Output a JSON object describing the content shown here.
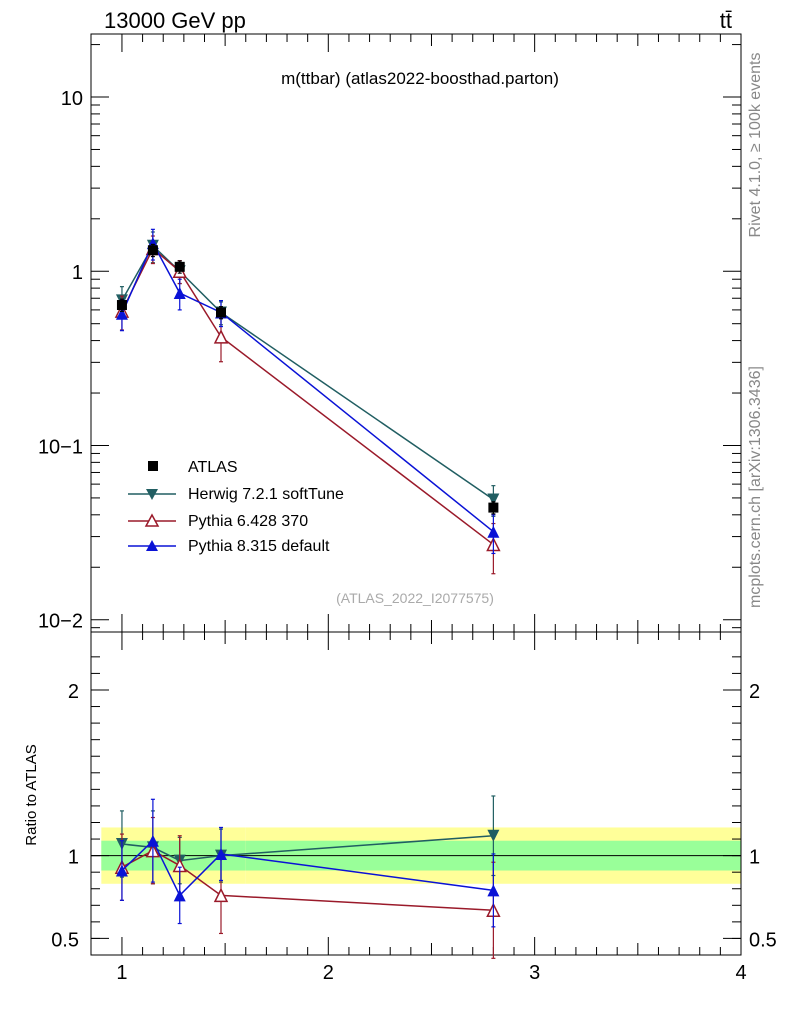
{
  "header": {
    "energy_label": "13000 GeV pp",
    "process_label": "tt̄"
  },
  "side_labels": {
    "rivet": "Rivet 4.1.0, ≥ 100k events",
    "mcplots": "mcplots.cern.ch [arXiv:1306.3436]"
  },
  "chart_data": {
    "type": "line",
    "title": "m(ttbar) (atlas2022-boosthad.parton)",
    "watermark": "(ATLAS_2022_I2077575)",
    "xlim": [
      0.85,
      4.0
    ],
    "x_ticks": [
      "1",
      "2",
      "3",
      "4"
    ],
    "main": {
      "yscale": "log",
      "ylim": [
        0.0085,
        23
      ],
      "y_ticks": [
        "10",
        "1",
        "10−1",
        "10−2"
      ]
    },
    "ratio": {
      "ylabel": "Ratio to ATLAS",
      "ylim": [
        0.4,
        2.35
      ],
      "y_ticks": [
        "2",
        "1",
        "0.5"
      ],
      "bins": [
        {
          "lo": 0.9,
          "hi": 1.6,
          "band1": 0.09,
          "band2": 0.17
        },
        {
          "lo": 1.6,
          "hi": 4.0,
          "band1": 0.09,
          "band2": 0.17
        }
      ]
    },
    "data": {
      "name": "ATLAS",
      "color": "#000000",
      "x": [
        1.0,
        1.15,
        1.28,
        1.48,
        2.8
      ],
      "y": [
        0.64,
        1.32,
        1.06,
        0.58,
        0.044
      ]
    },
    "series": [
      {
        "name": "Herwig 7.2.1 softTune",
        "color": "#215e62",
        "marker": "triangle-down-filled",
        "x": [
          1.0,
          1.15,
          1.28,
          1.48,
          2.8
        ],
        "y": [
          0.68,
          1.4,
          1.0,
          0.58,
          0.049
        ],
        "err_frac": [
          0.2,
          0.2,
          0.15,
          0.15,
          0.2
        ],
        "ratio": [
          1.07,
          1.05,
          0.97,
          1.0,
          1.12
        ],
        "ratio_err": [
          0.2,
          0.22,
          0.14,
          0.16,
          0.24
        ]
      },
      {
        "name": "Pythia 6.428 370",
        "color": "#9a1a2a",
        "marker": "triangle-up-open",
        "x": [
          1.0,
          1.15,
          1.28,
          1.48,
          2.8
        ],
        "y": [
          0.59,
          1.35,
          1.0,
          0.42,
          0.027
        ],
        "err_frac": [
          0.22,
          0.18,
          0.15,
          0.28,
          0.32
        ],
        "ratio": [
          0.93,
          1.03,
          0.94,
          0.76,
          0.67
        ],
        "ratio_err": [
          0.2,
          0.2,
          0.18,
          0.23,
          0.29
        ]
      },
      {
        "name": "Pythia 8.315 default",
        "color": "#0a12d6",
        "marker": "triangle-up-filled",
        "x": [
          1.0,
          1.15,
          1.28,
          1.48,
          2.8
        ],
        "y": [
          0.57,
          1.45,
          0.75,
          0.58,
          0.032
        ],
        "err_frac": [
          0.2,
          0.2,
          0.2,
          0.17,
          0.25
        ],
        "ratio": [
          0.91,
          1.09,
          0.76,
          1.01,
          0.79
        ],
        "ratio_err": [
          0.18,
          0.25,
          0.17,
          0.16,
          0.22
        ]
      }
    ]
  }
}
